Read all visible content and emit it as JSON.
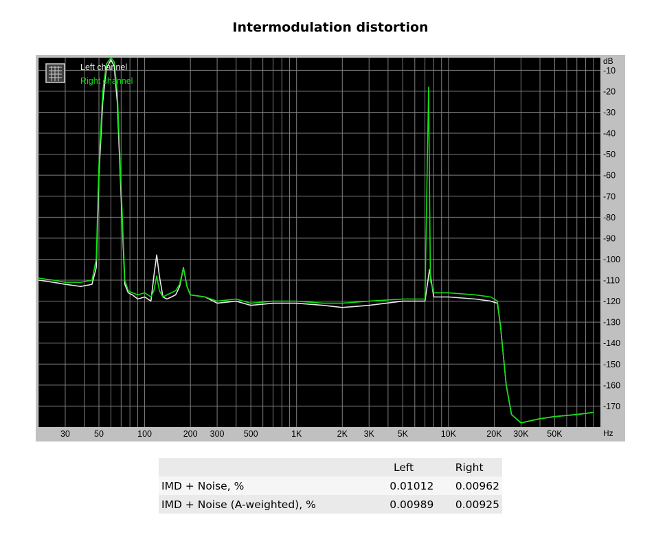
{
  "page_title": "Intermodulation distortion",
  "chart_data": {
    "type": "line",
    "x_scale": "log",
    "xlim": [
      20,
      100000
    ],
    "ylim": [
      -180,
      -4
    ],
    "x_unit": "Hz",
    "y_unit": "dB",
    "x_ticks": [
      {
        "value": 30,
        "label": "30"
      },
      {
        "value": 50,
        "label": "50"
      },
      {
        "value": 100,
        "label": "100"
      },
      {
        "value": 200,
        "label": "200"
      },
      {
        "value": 300,
        "label": "300"
      },
      {
        "value": 500,
        "label": "500"
      },
      {
        "value": 1000,
        "label": "1K"
      },
      {
        "value": 2000,
        "label": "2K"
      },
      {
        "value": 3000,
        "label": "3K"
      },
      {
        "value": 5000,
        "label": "5K"
      },
      {
        "value": 10000,
        "label": "10K"
      },
      {
        "value": 20000,
        "label": "20K"
      },
      {
        "value": 30000,
        "label": "30K"
      },
      {
        "value": 50000,
        "label": "50K"
      }
    ],
    "y_ticks": [
      {
        "value": -10,
        "label": "-10"
      },
      {
        "value": -20,
        "label": "-20"
      },
      {
        "value": -30,
        "label": "-30"
      },
      {
        "value": -40,
        "label": "-40"
      },
      {
        "value": -50,
        "label": "-50"
      },
      {
        "value": -60,
        "label": "-60"
      },
      {
        "value": -70,
        "label": "-70"
      },
      {
        "value": -80,
        "label": "-80"
      },
      {
        "value": -90,
        "label": "-90"
      },
      {
        "value": -100,
        "label": "-100"
      },
      {
        "value": -110,
        "label": "-110"
      },
      {
        "value": -120,
        "label": "-120"
      },
      {
        "value": -130,
        "label": "-130"
      },
      {
        "value": -140,
        "label": "-140"
      },
      {
        "value": -150,
        "label": "-150"
      },
      {
        "value": -160,
        "label": "-160"
      },
      {
        "value": -170,
        "label": "-170"
      }
    ],
    "grid": true,
    "legend_position": "top-left",
    "colors": {
      "background": "#000000",
      "grid": "#808080",
      "frame": "#c0c0c0"
    },
    "series": [
      {
        "name": "Left channel",
        "color": "#e8e8e8",
        "x": [
          20,
          25,
          30,
          38,
          45,
          48,
          50,
          53,
          56,
          60,
          63,
          66,
          70,
          74,
          78,
          83,
          90,
          100,
          110,
          115,
          120,
          125,
          132,
          140,
          150,
          160,
          170,
          180,
          190,
          200,
          250,
          300,
          400,
          500,
          700,
          1000,
          1500,
          2000,
          3000,
          5000,
          7000,
          7500,
          8000,
          10000,
          15000,
          19000,
          21000,
          22000,
          24000,
          26000,
          30000,
          40000,
          50000,
          70000,
          90000
        ],
        "y": [
          -110,
          -111,
          -112,
          -113,
          -112,
          -104,
          -60,
          -25,
          -9,
          -5,
          -8,
          -25,
          -70,
          -112,
          -116,
          -117,
          -119,
          -118,
          -120,
          -108,
          -98,
          -108,
          -118,
          -119,
          -118,
          -117,
          -113,
          -104,
          -113,
          -117,
          -118,
          -121,
          -120,
          -122,
          -121,
          -121,
          -122,
          -123,
          -122,
          -120,
          -120,
          -105,
          -118,
          -118,
          -119,
          -120,
          -121,
          -132,
          -160,
          -174,
          -178,
          -176,
          -175,
          -174,
          -173
        ]
      },
      {
        "name": "Right channel",
        "color": "#10e010",
        "x": [
          20,
          25,
          30,
          38,
          45,
          48,
          50,
          53,
          56,
          60,
          63,
          66,
          70,
          74,
          78,
          83,
          90,
          100,
          110,
          115,
          120,
          125,
          132,
          140,
          150,
          160,
          170,
          180,
          190,
          200,
          250,
          300,
          400,
          500,
          700,
          1000,
          1500,
          2000,
          3000,
          5000,
          7000,
          7400,
          7600,
          8000,
          10000,
          15000,
          19000,
          21000,
          22000,
          24000,
          26000,
          30000,
          40000,
          50000,
          70000,
          90000
        ],
        "y": [
          -109,
          -110,
          -111,
          -111,
          -110,
          -100,
          -55,
          -20,
          -7,
          -4,
          -6,
          -20,
          -65,
          -110,
          -115,
          -116,
          -117,
          -116,
          -118,
          -115,
          -108,
          -115,
          -118,
          -117,
          -116,
          -115,
          -112,
          -104,
          -113,
          -117,
          -118,
          -120,
          -119,
          -121,
          -120,
          -120,
          -121,
          -121,
          -120,
          -119,
          -119,
          -18,
          -110,
          -116,
          -116,
          -117,
          -118,
          -120,
          -132,
          -160,
          -174,
          -178,
          -176,
          -175,
          -174,
          -173
        ]
      }
    ]
  },
  "results_table": {
    "headers": [
      "",
      "Left",
      "Right"
    ],
    "rows": [
      [
        "IMD + Noise, %",
        "0.01012",
        "0.00962"
      ],
      [
        "IMD + Noise (A-weighted), %",
        "0.00989",
        "0.00925"
      ]
    ]
  }
}
